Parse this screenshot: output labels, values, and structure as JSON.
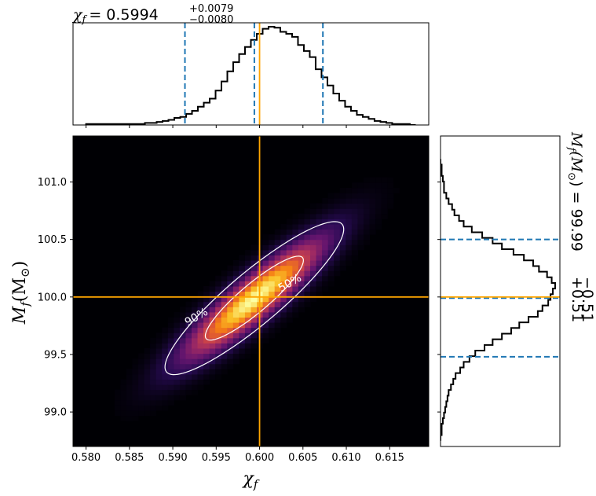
{
  "chart_data": [
    {
      "type": "histogram",
      "panel": "top-marginal",
      "title": {
        "symbol": "χ",
        "symbol_sub": "f",
        "value": "= 0.5994",
        "plus": "+0.0079",
        "minus": "−0.0080"
      },
      "x_edges_range": [
        0.58,
        0.618
      ],
      "bin_values": [
        0.01,
        0.01,
        0.01,
        0.01,
        0.01,
        0.01,
        0.01,
        0.01,
        0.01,
        0.01,
        0.02,
        0.02,
        0.03,
        0.04,
        0.05,
        0.07,
        0.08,
        0.11,
        0.14,
        0.18,
        0.22,
        0.26,
        0.34,
        0.43,
        0.53,
        0.62,
        0.7,
        0.77,
        0.84,
        0.9,
        0.95,
        0.97,
        0.96,
        0.92,
        0.9,
        0.87,
        0.79,
        0.73,
        0.67,
        0.55,
        0.47,
        0.39,
        0.31,
        0.24,
        0.18,
        0.14,
        0.1,
        0.08,
        0.06,
        0.04,
        0.03,
        0.02,
        0.01,
        0.01,
        0.01,
        0.0
      ],
      "quantile_lines": [
        0.5914,
        0.5994,
        0.6073
      ],
      "truth_line": 0.6,
      "xlim": [
        0.5785,
        0.6195
      ]
    },
    {
      "type": "heatmap",
      "panel": "joint-2d",
      "xlabel": {
        "symbol": "χ",
        "sub": "f"
      },
      "ylabel": {
        "symbol": "M",
        "sub": "f",
        "suffix": "(M",
        "sub2": "⊙",
        "close": ")"
      },
      "xlim": [
        0.5785,
        0.6195
      ],
      "ylim": [
        98.7,
        101.4
      ],
      "x_ticks": [
        "0.580",
        "0.585",
        "0.590",
        "0.595",
        "0.600",
        "0.605",
        "0.610",
        "0.615"
      ],
      "y_ticks": [
        "99.0",
        "99.5",
        "100.0",
        "100.5",
        "101.0"
      ],
      "center": [
        0.5994,
        99.99
      ],
      "sigma": [
        0.0048,
        0.31
      ],
      "correlation": 0.9,
      "colormap": "inferno",
      "contours": [
        {
          "label": "90%",
          "level": 0.9
        },
        {
          "label": "50%",
          "level": 0.5
        }
      ],
      "truth": {
        "x": 0.6,
        "y": 100.0
      }
    },
    {
      "type": "histogram",
      "panel": "right-marginal",
      "orientation": "horizontal",
      "title": {
        "symbol": "M",
        "symbol_sub": "f",
        "suffix": "(M",
        "sub2": "⊙",
        "close": ")",
        "value": "= 99.99",
        "plus": "+0.51",
        "minus": "−0.51"
      },
      "y_edges_range": [
        98.75,
        101.2
      ],
      "bin_values": [
        0.0,
        0.01,
        0.01,
        0.02,
        0.03,
        0.04,
        0.05,
        0.06,
        0.07,
        0.09,
        0.11,
        0.13,
        0.17,
        0.2,
        0.25,
        0.3,
        0.38,
        0.45,
        0.53,
        0.61,
        0.68,
        0.76,
        0.84,
        0.88,
        0.93,
        0.95,
        0.97,
        0.99,
        0.96,
        0.92,
        0.85,
        0.8,
        0.72,
        0.63,
        0.53,
        0.45,
        0.36,
        0.27,
        0.2,
        0.16,
        0.12,
        0.1,
        0.07,
        0.05,
        0.03,
        0.03,
        0.02,
        0.01,
        0.01,
        0.0
      ],
      "quantile_lines": [
        99.48,
        99.99,
        100.5
      ],
      "truth_line": 100.0,
      "ylim": [
        98.7,
        101.4
      ]
    }
  ],
  "colors": {
    "histogram": "#000000",
    "quantile": "#1f77b4",
    "truth": "#ffa500",
    "contour": "#ffffff"
  }
}
